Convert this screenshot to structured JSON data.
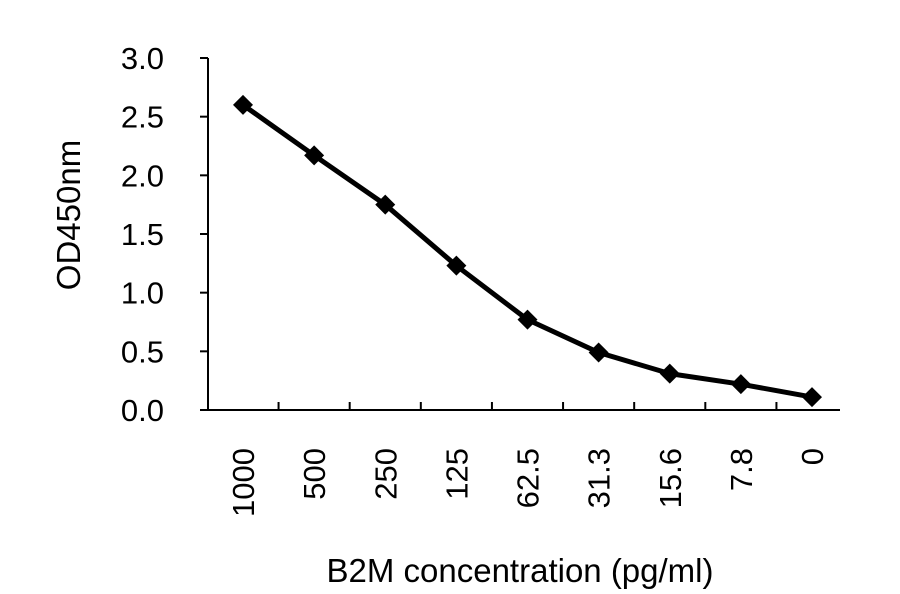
{
  "chart_data": {
    "type": "line",
    "title": "",
    "xlabel": "B2M concentration (pg/ml)",
    "ylabel": "OD450nm",
    "categories": [
      "1000",
      "500",
      "250",
      "125",
      "62.5",
      "31.3",
      "15.6",
      "7.8",
      "0"
    ],
    "series": [
      {
        "values": [
          2.6,
          2.17,
          1.75,
          1.23,
          0.77,
          0.49,
          0.31,
          0.22,
          0.11
        ],
        "color": "#000000",
        "marker": "diamond"
      }
    ],
    "ylim": [
      0,
      3.0
    ],
    "yticks": [
      "0.0",
      "0.5",
      "1.0",
      "1.5",
      "2.0",
      "2.5",
      "3.0"
    ],
    "grid": false,
    "legend": "none"
  }
}
